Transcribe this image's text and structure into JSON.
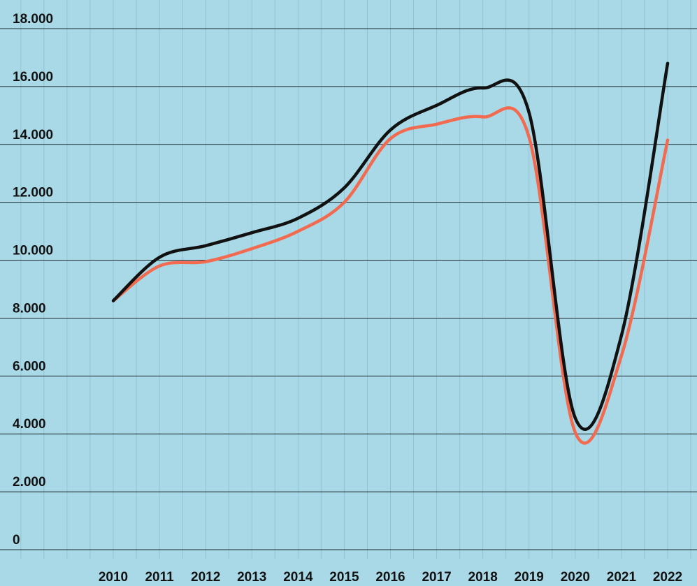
{
  "chart_data": {
    "type": "line",
    "categories": [
      "2010",
      "2011",
      "2012",
      "2013",
      "2014",
      "2015",
      "2016",
      "2017",
      "2018",
      "2019",
      "2020",
      "2021",
      "2022"
    ],
    "series": [
      {
        "color": "#111111",
        "values": [
          8600,
          10100,
          10500,
          10950,
          11450,
          12500,
          14500,
          15350,
          15950,
          15100,
          4550,
          7400,
          16800
        ]
      },
      {
        "color": "#f26b50",
        "values": [
          8600,
          9800,
          9950,
          10400,
          11000,
          12000,
          14200,
          14700,
          14950,
          14250,
          4050,
          6700,
          14150
        ]
      }
    ],
    "ylim": [
      0,
      18000
    ],
    "yticks": [
      0,
      {
        "value": 2000,
        "label": "2.000"
      },
      {
        "value": 4000,
        "label": "4.000"
      },
      {
        "value": 6000,
        "label": "6.000"
      },
      {
        "value": 8000,
        "label": "8.000"
      },
      {
        "value": 10000,
        "label": "10.000"
      },
      {
        "value": 12000,
        "label": "12.000"
      },
      {
        "value": 14000,
        "label": "14.000"
      },
      {
        "value": 16000,
        "label": "16.000"
      },
      {
        "value": 18000,
        "label": "18.000"
      }
    ],
    "grid": true
  }
}
